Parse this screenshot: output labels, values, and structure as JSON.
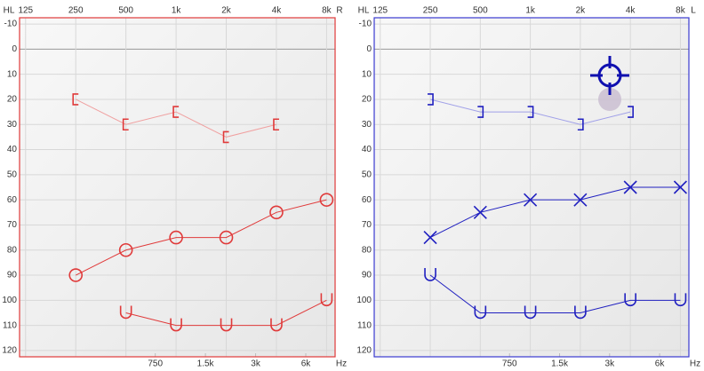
{
  "chart_data": [
    {
      "type": "line",
      "hl_label": "HL",
      "side_label": "R",
      "unit_label": "Hz",
      "xscale": "log",
      "xlim": [
        115,
        9000
      ],
      "ylim": [
        -12.5,
        122.5
      ],
      "y_inverted": true,
      "grid": true,
      "frame_color": "#e03a3a",
      "xticks": [
        125,
        250,
        500,
        {
          "value": 1000,
          "label": "1k"
        },
        {
          "value": 2000,
          "label": "2k"
        },
        {
          "value": 4000,
          "label": "4k"
        },
        {
          "value": 8000,
          "label": "8k"
        }
      ],
      "x2ticks": [
        750,
        {
          "value": 1500,
          "label": "1.5k"
        },
        {
          "value": 3000,
          "label": "3k"
        },
        {
          "value": 6000,
          "label": "6k"
        }
      ],
      "yticks": [
        -10,
        0,
        10,
        20,
        30,
        40,
        50,
        60,
        70,
        80,
        90,
        100,
        110,
        120
      ],
      "x": [
        125,
        250,
        500,
        1000,
        2000,
        4000,
        8000
      ],
      "series": [
        {
          "marker": "[",
          "color": "#e03a3a",
          "line_color": "#f0a0a0",
          "values": [
            null,
            20,
            30,
            25,
            35,
            30,
            null
          ]
        },
        {
          "marker": "O",
          "color": "#e03a3a",
          "line_color": "#e03a3a",
          "values": [
            null,
            90,
            80,
            75,
            75,
            65,
            60
          ]
        },
        {
          "marker": "U",
          "color": "#e03a3a",
          "line_color": "#e03a3a",
          "values": [
            null,
            null,
            105,
            110,
            110,
            110,
            100
          ]
        }
      ]
    },
    {
      "type": "line",
      "hl_label": "HL",
      "side_label": "L",
      "unit_label": "Hz",
      "xscale": "log",
      "xlim": [
        115,
        9000
      ],
      "ylim": [
        -12.5,
        122.5
      ],
      "y_inverted": true,
      "grid": true,
      "frame_color": "#3a3ad0",
      "xticks": [
        125,
        250,
        500,
        {
          "value": 1000,
          "label": "1k"
        },
        {
          "value": 2000,
          "label": "2k"
        },
        {
          "value": 4000,
          "label": "4k"
        },
        {
          "value": 8000,
          "label": "8k"
        }
      ],
      "x2ticks": [
        750,
        {
          "value": 1500,
          "label": "1.5k"
        },
        {
          "value": 3000,
          "label": "3k"
        },
        {
          "value": 6000,
          "label": "6k"
        }
      ],
      "yticks": [
        -10,
        0,
        10,
        20,
        30,
        40,
        50,
        60,
        70,
        80,
        90,
        100,
        110,
        120
      ],
      "x": [
        125,
        250,
        500,
        1000,
        2000,
        4000,
        8000
      ],
      "series": [
        {
          "marker": "]",
          "color": "#2020c0",
          "line_color": "#a0a0e8",
          "values": [
            null,
            20,
            25,
            25,
            30,
            25,
            null
          ]
        },
        {
          "marker": "X",
          "color": "#2020c0",
          "line_color": "#2020c0",
          "values": [
            null,
            75,
            65,
            60,
            60,
            55,
            55
          ]
        },
        {
          "marker": "U",
          "color": "#2020c0",
          "line_color": "#2020c0",
          "values": [
            null,
            90,
            105,
            105,
            105,
            100,
            100
          ]
        }
      ]
    }
  ]
}
